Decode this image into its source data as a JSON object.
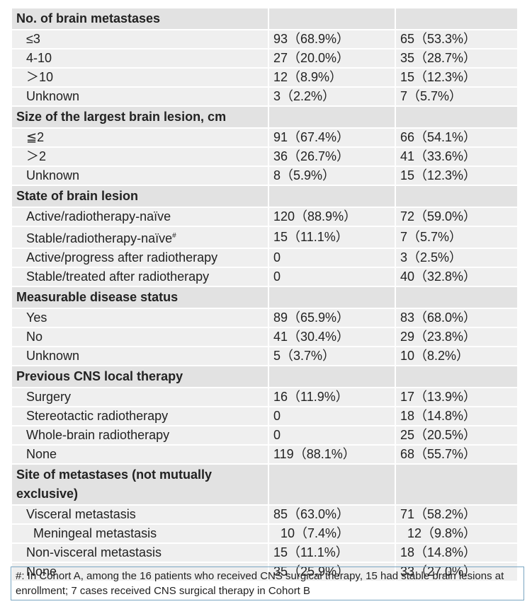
{
  "sections": [
    {
      "title": "No. of brain metastases",
      "rows": [
        {
          "label": "≤3",
          "a": "93（68.9%）",
          "b": "65（53.3%）"
        },
        {
          "label": "4-10",
          "a": "27（20.0%）",
          "b": "35（28.7%）"
        },
        {
          "label": "＞10",
          "a": "12（8.9%）",
          "b": "15（12.3%）"
        },
        {
          "label": "Unknown",
          "a": "3（2.2%）",
          "b": "7（5.7%）"
        }
      ]
    },
    {
      "title": "Size of the largest brain lesion, cm",
      "rows": [
        {
          "label": "≦2",
          "a": "91（67.4%）",
          "b": "66（54.1%）"
        },
        {
          "label": "＞2",
          "a": "36（26.7%）",
          "b": "41（33.6%）"
        },
        {
          "label": "Unknown",
          "a": "8（5.9%）",
          "b": "15（12.3%）"
        }
      ]
    },
    {
      "title": "State of brain lesion",
      "rows": [
        {
          "label": "Active/radiotherapy-naïve",
          "a": "120（88.9%）",
          "b": "72（59.0%）"
        },
        {
          "label": "Stable/radiotherapy-naïve",
          "sup": "#",
          "a": "15（11.1%）",
          "b": "7（5.7%）"
        },
        {
          "label": "Active/progress after radiotherapy",
          "a": "0",
          "b": "3（2.5%）"
        },
        {
          "label": "Stable/treated after radiotherapy",
          "a": "0",
          "b": "40（32.8%）"
        }
      ]
    },
    {
      "title": "Measurable disease status",
      "rows": [
        {
          "label": "Yes",
          "a": "89（65.9%）",
          "b": "83（68.0%）"
        },
        {
          "label": "No",
          "a": "41（30.4%）",
          "b": "29（23.8%）"
        },
        {
          "label": "Unknown",
          "a": "5（3.7%）",
          "b": "10（8.2%）"
        }
      ]
    },
    {
      "title": "Previous CNS local therapy",
      "rows": [
        {
          "label": "Surgery",
          "a": "16（11.9%）",
          "b": "17（13.9%）"
        },
        {
          "label": "Stereotactic radiotherapy",
          "a": "0",
          "b": "18（14.8%）"
        },
        {
          "label": "Whole-brain radiotherapy",
          "a": "0",
          "b": "25（20.5%）"
        },
        {
          "label": "None",
          "a": "119（88.1%）",
          "b": "68（55.7%）"
        }
      ]
    },
    {
      "title": "Site of metastases (not mutually exclusive)",
      "rows": [
        {
          "label": "Visceral metastasis",
          "a": "85（63.0%）",
          "b": "71（58.2%）",
          "sub": [
            {
              "label": "Meningeal metastasis",
              "a": "10（7.4%）",
              "b": "12（9.8%）"
            }
          ]
        },
        {
          "label": "Non-visceral metastasis",
          "a": "15（11.1%）",
          "b": "18（14.8%）"
        },
        {
          "label": "None",
          "a": "35（25.9%）",
          "b": "33（27.0%）"
        }
      ]
    }
  ],
  "footnote": "#: In Cohort A, among the 16 patients who received CNS surgical therapy, 15 had stable brain lesions at enrollment; 7 cases received CNS surgical therapy in Cohort B"
}
